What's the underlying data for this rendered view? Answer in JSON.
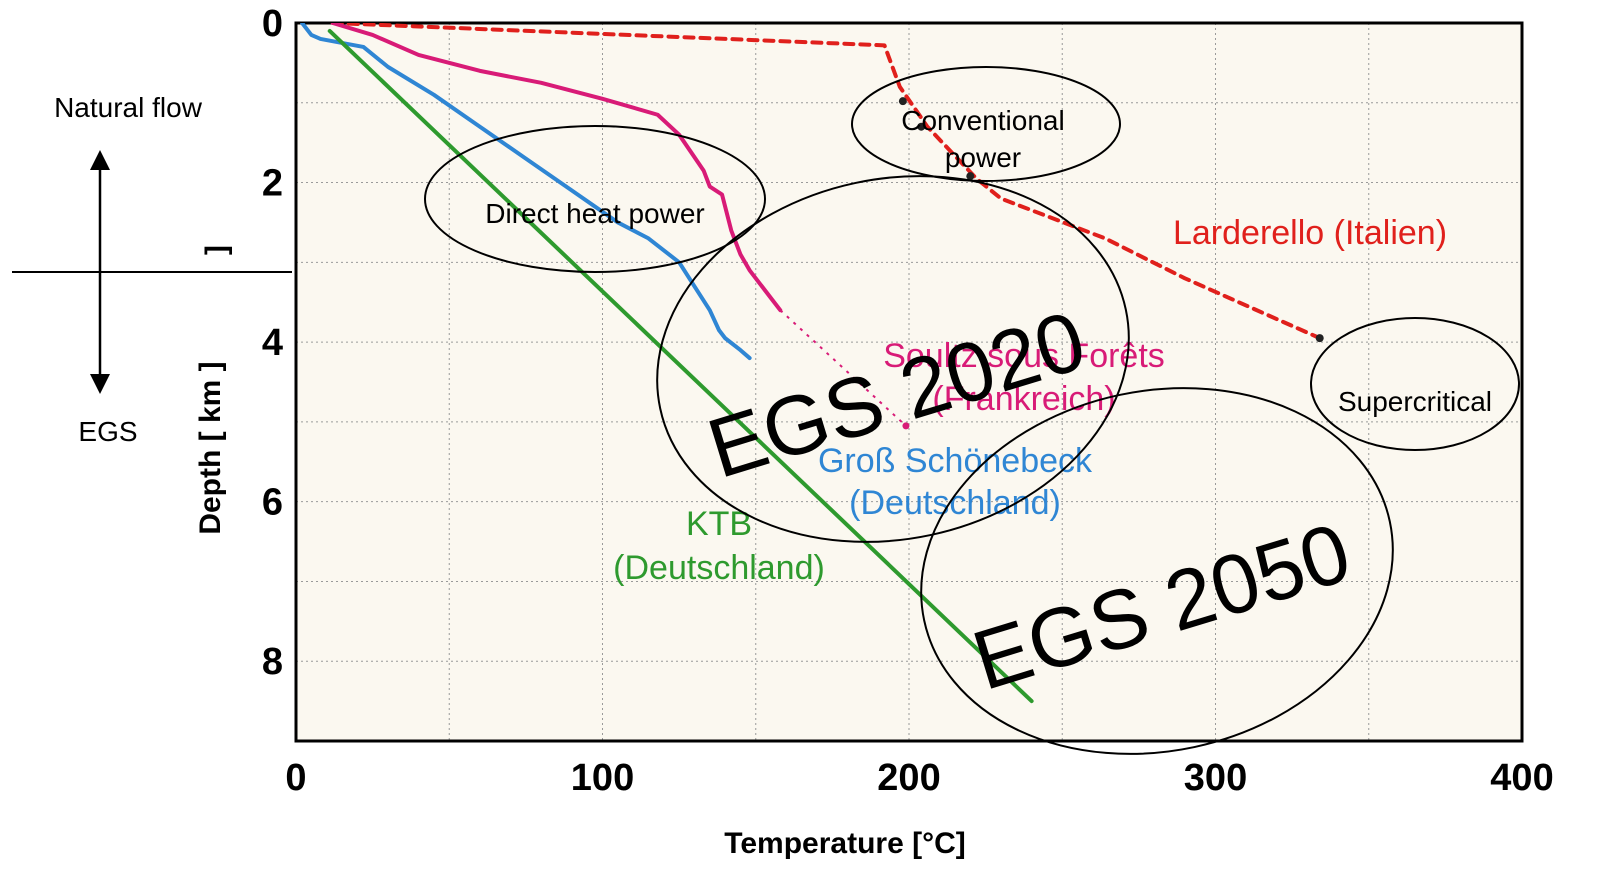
{
  "chart_data": {
    "type": "line",
    "xlabel": "Temperature [°C]",
    "ylabel": "Depth [ km ]",
    "ylabel_stray": "]",
    "xlim": [
      0,
      400
    ],
    "ylim": [
      0,
      9
    ],
    "y_inverted": true,
    "x_ticks": [
      "0",
      "100",
      "200",
      "300",
      "400"
    ],
    "y_ticks": [
      "0",
      "2",
      "4",
      "6",
      "8"
    ],
    "grid": true,
    "background": "#fbf8f0",
    "series": [
      {
        "key": "larderello",
        "name": "Larderello (Italien)",
        "color": "#e0201c",
        "style": "dashed",
        "x": [
          12,
          192,
          197,
          206,
          222,
          230,
          264,
          290,
          334
        ],
        "y": [
          0,
          0.28,
          0.8,
          1.3,
          1.95,
          2.2,
          2.7,
          3.2,
          3.95
        ],
        "label_lines": [
          "Larderello (Italien)"
        ]
      },
      {
        "key": "soultz",
        "name": "Soultz sous Forêts (Frankreich)",
        "color": "#d81b77",
        "style": "solid",
        "x": [
          12,
          25,
          40,
          60,
          80,
          100,
          118,
          125,
          133,
          135,
          139,
          142,
          145,
          148,
          152,
          155,
          158
        ],
        "y": [
          0,
          0.15,
          0.4,
          0.6,
          0.75,
          0.95,
          1.15,
          1.4,
          1.85,
          2.05,
          2.15,
          2.6,
          2.9,
          3.1,
          3.3,
          3.45,
          3.6
        ],
        "ext_x": [
          158,
          175,
          199
        ],
        "ext_y": [
          3.6,
          4.2,
          5.05
        ],
        "label_lines": [
          "Soultz sous Forêts",
          "(Frankreich)"
        ]
      },
      {
        "key": "gross",
        "name": "Groß Schönebeck (Deutschland)",
        "color": "#2f86d4",
        "style": "solid",
        "x": [
          2,
          5,
          8,
          22,
          30,
          45,
          60,
          75,
          90,
          105,
          115,
          125,
          130,
          135,
          138,
          140,
          145,
          148
        ],
        "y": [
          0,
          0.15,
          0.2,
          0.3,
          0.55,
          0.9,
          1.3,
          1.7,
          2.1,
          2.5,
          2.7,
          3.0,
          3.3,
          3.6,
          3.85,
          3.95,
          4.1,
          4.2
        ],
        "label_lines": [
          "Groß Schönebeck",
          "(Deutschland)"
        ]
      },
      {
        "key": "ktb",
        "name": "KTB (Deutschland)",
        "color": "#2e9a2e",
        "style": "solid",
        "x": [
          11,
          240
        ],
        "y": [
          0.1,
          8.5
        ],
        "label_lines": [
          "KTB",
          "(Deutschland)"
        ]
      }
    ],
    "larderello_dots_x": [
      198,
      204,
      220,
      334
    ],
    "larderello_dots_y": [
      0.98,
      1.3,
      1.92,
      3.95
    ],
    "zones": [
      {
        "key": "direct",
        "label_lines": [
          "Direct heat  power"
        ]
      },
      {
        "key": "conventional",
        "label_lines": [
          "Conventional",
          "power"
        ]
      },
      {
        "key": "supercritical",
        "label_lines": [
          "Supercritical"
        ]
      },
      {
        "key": "egs2020",
        "label_lines": [
          "EGS 2020"
        ]
      },
      {
        "key": "egs2050",
        "label_lines": [
          "EGS 2050"
        ]
      }
    ],
    "side_labels": {
      "natural_flow": "Natural flow",
      "egs": "EGS"
    }
  }
}
